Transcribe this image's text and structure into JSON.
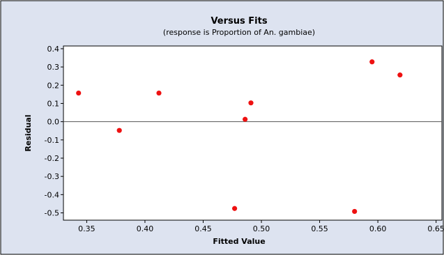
{
  "chart_data": {
    "type": "scatter",
    "title": "Versus Fits",
    "subtitle": "(response is Proportion of An. gambiae)",
    "xlabel": "Fitted Value",
    "ylabel": "Residual",
    "xlim": [
      0.33,
      0.655
    ],
    "ylim": [
      -0.54,
      0.415
    ],
    "xticks": [
      "0.35",
      "0.40",
      "0.45",
      "0.50",
      "0.55",
      "0.60",
      "0.65"
    ],
    "yticks": [
      "0.4",
      "0.3",
      "0.2",
      "0.1",
      "0.0",
      "-0.1",
      "-0.2",
      "-0.3",
      "-0.4",
      "-0.5"
    ],
    "reference_line_y": 0.0,
    "grid": false,
    "marker_color": "#ee1111",
    "points": [
      {
        "x": 0.343,
        "y": 0.157
      },
      {
        "x": 0.378,
        "y": -0.048
      },
      {
        "x": 0.412,
        "y": 0.157
      },
      {
        "x": 0.477,
        "y": -0.476
      },
      {
        "x": 0.486,
        "y": 0.013
      },
      {
        "x": 0.491,
        "y": 0.103
      },
      {
        "x": 0.58,
        "y": -0.492
      },
      {
        "x": 0.595,
        "y": 0.328
      },
      {
        "x": 0.619,
        "y": 0.256
      }
    ]
  },
  "colors": {
    "outer_background": "#dde3f0",
    "plot_background": "#ffffff",
    "border": "#000000"
  }
}
